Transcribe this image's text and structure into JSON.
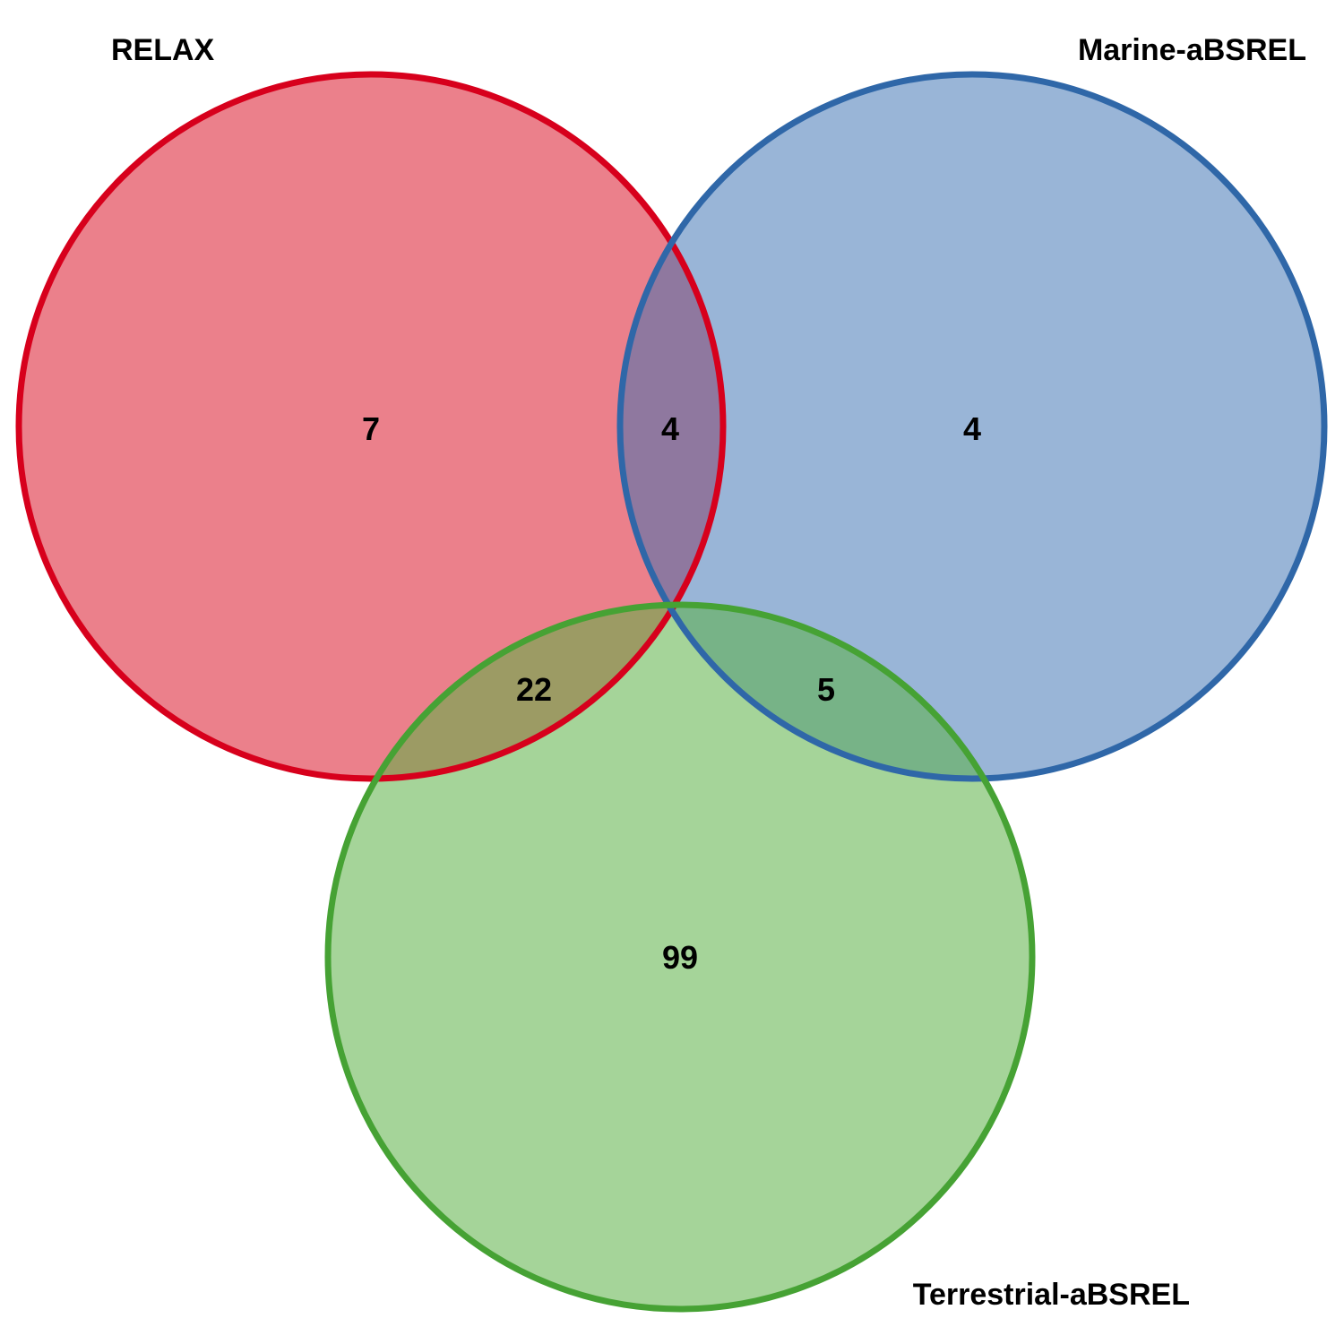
{
  "sets": [
    {
      "name": "RELAX",
      "stroke": "#d7001c",
      "fill": "#e34a5a"
    },
    {
      "name": "Marine-aBSREL",
      "stroke": "#2f67a8",
      "fill": "#3b72b3"
    },
    {
      "name": "Terrestrial-aBSREL",
      "stroke": "#46a234",
      "fill": "#5bb046"
    }
  ],
  "regions": {
    "relax_only": "7",
    "relax_marine": "4",
    "marine_only": "4",
    "relax_terrestrial": "22",
    "marine_terrestrial": "5",
    "terrestrial_only": "99"
  }
}
